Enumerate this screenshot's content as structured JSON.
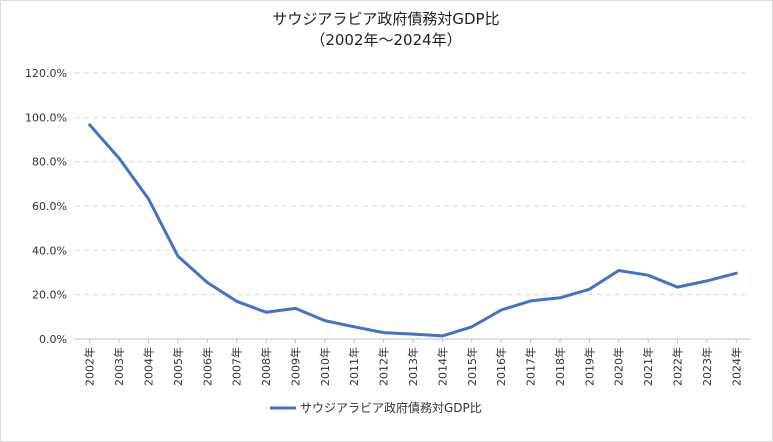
{
  "chart_data": {
    "type": "line",
    "title": "サウジアラビア政府債務対GDP比",
    "subtitle": "（2002年～2024年）",
    "categories": [
      "2002年",
      "2003年",
      "2004年",
      "2005年",
      "2006年",
      "2007年",
      "2008年",
      "2009年",
      "2010年",
      "2011年",
      "2012年",
      "2013年",
      "2014年",
      "2015年",
      "2016年",
      "2017年",
      "2018年",
      "2019年",
      "2020年",
      "2021年",
      "2022年",
      "2023年",
      "2024年"
    ],
    "series": [
      {
        "name": "サウジアラビア政府債務対GDP比",
        "color": "#4472C4",
        "values": [
          0.966,
          0.815,
          0.632,
          0.374,
          0.255,
          0.17,
          0.121,
          0.138,
          0.083,
          0.055,
          0.029,
          0.022,
          0.014,
          0.055,
          0.131,
          0.172,
          0.186,
          0.224,
          0.309,
          0.288,
          0.234,
          0.262,
          0.297
        ]
      }
    ],
    "ylim": [
      0,
      1.2
    ],
    "yticks": [
      "0.0%",
      "20.0%",
      "40.0%",
      "60.0%",
      "80.0%",
      "100.0%",
      "120.0%"
    ],
    "grid": true,
    "legend": "bottom"
  }
}
